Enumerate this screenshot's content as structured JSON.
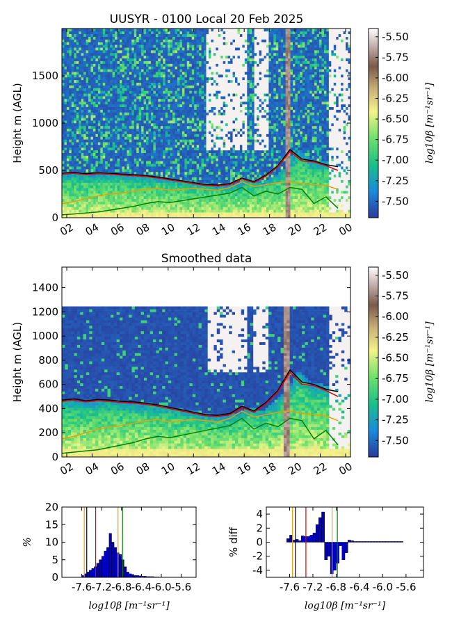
{
  "chart_data": [
    {
      "type": "heatmap",
      "title": "UUSYR - 0100 Local 20 Feb 2025",
      "ylabel": "Height m (AGL)",
      "xlabel": "",
      "x_ticks": [
        "02",
        "04",
        "06",
        "08",
        "10",
        "12",
        "14",
        "16",
        "18",
        "20",
        "22",
        "00"
      ],
      "y_ticks": [
        0,
        500,
        1000,
        1500
      ],
      "ylim": [
        0,
        2000
      ],
      "colorbar": {
        "label": "log10β [m⁻¹sr⁻¹]",
        "ticks": [
          "-5.50",
          "-5.75",
          "-6.00",
          "-6.25",
          "-6.50",
          "-6.75",
          "-7.00",
          "-7.25",
          "-7.50"
        ],
        "range": [
          -7.7,
          -5.4
        ]
      },
      "lines": [
        {
          "name": "",
          "color": "#000000",
          "values": [
            470,
            480,
            465,
            475,
            470,
            460,
            455,
            445,
            430,
            410,
            390,
            370,
            350,
            345,
            360,
            420,
            380,
            450,
            550,
            720,
            620,
            600,
            560,
            540
          ]
        },
        {
          "name": "",
          "color": "#e00000",
          "values": [
            460,
            470,
            455,
            465,
            460,
            450,
            445,
            435,
            420,
            400,
            380,
            360,
            340,
            335,
            350,
            410,
            370,
            440,
            540,
            700,
            600,
            590,
            550,
            500
          ]
        },
        {
          "name": "",
          "color": "#e8a000",
          "values": [
            150,
            170,
            200,
            230,
            250,
            260,
            280,
            300,
            310,
            290,
            300,
            310,
            300,
            290,
            320,
            380,
            330,
            350,
            370,
            380,
            360,
            350,
            340,
            300
          ]
        },
        {
          "name": "",
          "color": "#008000",
          "values": [
            30,
            40,
            50,
            60,
            80,
            100,
            120,
            150,
            170,
            160,
            180,
            200,
            220,
            240,
            260,
            320,
            230,
            280,
            250,
            320,
            300,
            150,
            220,
            100
          ]
        }
      ]
    },
    {
      "type": "heatmap",
      "title": "Smoothed data",
      "ylabel": "Height m (AGL)",
      "xlabel": "",
      "x_ticks": [
        "02",
        "04",
        "06",
        "08",
        "10",
        "12",
        "14",
        "16",
        "18",
        "20",
        "22",
        "00"
      ],
      "y_ticks": [
        0,
        200,
        400,
        600,
        800,
        1000,
        1200,
        1400
      ],
      "ylim": [
        0,
        1570
      ],
      "colorbar": {
        "label": "log10β [m⁻¹sr⁻¹]",
        "ticks": [
          "-5.50",
          "-5.75",
          "-6.00",
          "-6.25",
          "-6.50",
          "-6.75",
          "-7.00",
          "-7.25",
          "-7.50"
        ],
        "range": [
          -7.7,
          -5.4
        ]
      },
      "lines": [
        {
          "name": "",
          "color": "#000000",
          "values": [
            470,
            480,
            465,
            475,
            470,
            460,
            455,
            445,
            430,
            410,
            390,
            370,
            350,
            345,
            360,
            420,
            380,
            450,
            550,
            720,
            620,
            600,
            560,
            540
          ]
        },
        {
          "name": "",
          "color": "#e00000",
          "values": [
            460,
            470,
            455,
            465,
            460,
            450,
            445,
            435,
            420,
            400,
            380,
            360,
            340,
            335,
            350,
            410,
            370,
            440,
            540,
            700,
            600,
            590,
            550,
            500
          ]
        },
        {
          "name": "",
          "color": "#e8a000",
          "values": [
            150,
            170,
            200,
            230,
            250,
            260,
            280,
            300,
            310,
            290,
            300,
            310,
            300,
            290,
            320,
            380,
            330,
            350,
            370,
            380,
            360,
            350,
            340,
            300
          ]
        },
        {
          "name": "",
          "color": "#008000",
          "values": [
            30,
            40,
            50,
            60,
            80,
            100,
            120,
            150,
            170,
            160,
            180,
            200,
            220,
            240,
            260,
            320,
            230,
            280,
            250,
            320,
            300,
            150,
            220,
            100
          ]
        }
      ]
    },
    {
      "type": "bar",
      "title": "",
      "xlabel": "log10β [m⁻¹sr⁻¹]",
      "ylabel": "%",
      "x_ticks": [
        "-7.6",
        "-7.2",
        "-6.8",
        "-6.4",
        "-6.0",
        "-5.6"
      ],
      "xlim": [
        -8.0,
        -5.3
      ],
      "ylim": [
        0,
        20
      ],
      "y_ticks": [
        0,
        5,
        10,
        15,
        20
      ],
      "bar_width": 0.05,
      "x": [
        -7.6,
        -7.55,
        -7.5,
        -7.45,
        -7.4,
        -7.35,
        -7.3,
        -7.25,
        -7.2,
        -7.15,
        -7.1,
        -7.05,
        -7.0,
        -6.95,
        -6.9,
        -6.85,
        -6.8,
        -6.75,
        -6.7,
        -6.65,
        -6.6,
        -6.55,
        -6.5,
        -6.45,
        -6.4,
        -6.35,
        -6.3,
        -6.25,
        -6.2,
        -6.15,
        -6.1
      ],
      "values": [
        0.5,
        1.0,
        1.5,
        2.0,
        2.5,
        3.0,
        4.0,
        5.0,
        6.0,
        7.5,
        8.5,
        12.5,
        10.0,
        8.5,
        7.0,
        6.5,
        5.0,
        3.0,
        1.5,
        1.0,
        0.8,
        0.5,
        0.5,
        0.4,
        0.3,
        0.3,
        0.2,
        0.2,
        0.2,
        0.1,
        0.1
      ],
      "vlines": [
        {
          "x": -7.55,
          "color": "#e8a000"
        },
        {
          "x": -7.5,
          "color": "#000000"
        },
        {
          "x": -7.32,
          "color": "#e00000"
        },
        {
          "x": -6.87,
          "color": "#e8a000"
        },
        {
          "x": -6.78,
          "color": "#008000"
        }
      ]
    },
    {
      "type": "bar",
      "title": "",
      "xlabel": "log10β [m⁻¹sr⁻¹]",
      "ylabel": "% diff",
      "x_ticks": [
        "-7.6",
        "-7.2",
        "-6.8",
        "-6.4",
        "-6.0",
        "-5.6"
      ],
      "xlim": [
        -8.0,
        -5.3
      ],
      "ylim": [
        -5,
        5
      ],
      "y_ticks": [
        -4,
        -2,
        0,
        2,
        4
      ],
      "bar_width": 0.05,
      "x": [
        -7.65,
        -7.6,
        -7.55,
        -7.5,
        -7.45,
        -7.4,
        -7.35,
        -7.3,
        -7.25,
        -7.2,
        -7.15,
        -7.1,
        -7.05,
        -7.0,
        -6.95,
        -6.9,
        -6.85,
        -6.8,
        -6.75,
        -6.7,
        -6.65,
        -6.6,
        -6.55,
        -6.5,
        -6.45,
        -6.4,
        -6.35,
        -6.3,
        -6.25,
        -6.2,
        -6.15,
        -6.1,
        -6.05,
        -6.0,
        -5.95,
        -5.9,
        -5.85,
        -5.8,
        -5.75,
        -5.7
      ],
      "values": [
        0.5,
        1.0,
        0.3,
        0.4,
        0.2,
        0.9,
        0.8,
        0.8,
        1.0,
        1.3,
        2.5,
        3.5,
        4.3,
        -2.5,
        -2.0,
        -4.5,
        -4.0,
        -3.0,
        -0.5,
        -2.5,
        -1.5,
        0.3,
        0.2,
        0.1,
        0.1,
        0.1,
        0.1,
        0.1,
        0.1,
        0.1,
        0.1,
        0.1,
        0.1,
        0.1,
        0.1,
        0.1,
        0.1,
        0.1,
        0.1,
        0.1
      ],
      "vlines": [
        {
          "x": -7.55,
          "color": "#e8a000"
        },
        {
          "x": -7.5,
          "color": "#000000"
        },
        {
          "x": -7.32,
          "color": "#e00000"
        },
        {
          "x": -6.87,
          "color": "#e8a000"
        },
        {
          "x": -6.78,
          "color": "#008000"
        }
      ]
    }
  ]
}
